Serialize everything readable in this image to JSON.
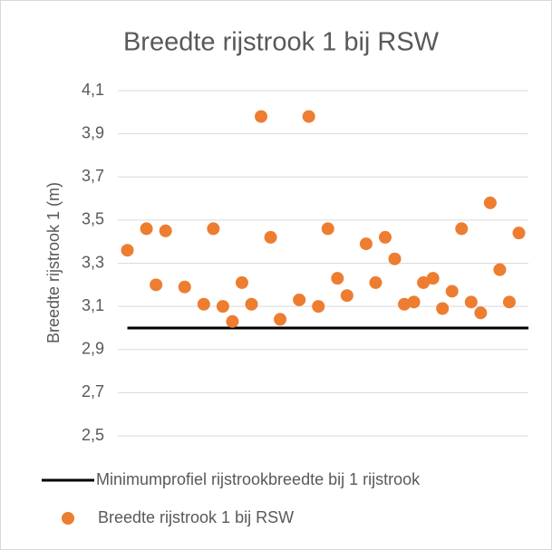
{
  "chart_data": {
    "type": "scatter",
    "title": "Breedte rijstrook 1 bij RSW",
    "ylabel": "Breedte rijstrook 1 (m)",
    "xlim": [
      0,
      43
    ],
    "ylim": [
      2.5,
      4.1
    ],
    "yticks": [
      {
        "value": 2.5,
        "label": "2,5"
      },
      {
        "value": 2.7,
        "label": "2,7"
      },
      {
        "value": 2.9,
        "label": "2,9"
      },
      {
        "value": 3.1,
        "label": "3,1"
      },
      {
        "value": 3.3,
        "label": "3,3"
      },
      {
        "value": 3.5,
        "label": "3,5"
      },
      {
        "value": 3.7,
        "label": "3,7"
      },
      {
        "value": 3.9,
        "label": "3,9"
      },
      {
        "value": 4.1,
        "label": "4,1"
      }
    ],
    "grid": true,
    "legend": "bottom",
    "series": [
      {
        "name": "Minimumprofiel rijstrookbreedte bij 1 rijstrook",
        "color": "#000000",
        "type": "line",
        "x": [
          1,
          43
        ],
        "values": [
          3,
          3
        ]
      },
      {
        "name": "Breedte rijstrook 1 bij RSW",
        "color": "#ed7d31",
        "type": "scatter",
        "x": [
          1,
          3,
          4,
          5,
          7,
          9,
          10,
          11,
          12,
          13,
          14,
          15,
          16,
          17,
          19,
          20,
          21,
          22,
          23,
          24,
          26,
          27,
          28,
          29,
          30,
          31,
          32,
          33,
          34,
          35,
          36,
          37,
          38,
          39,
          40,
          41,
          42
        ],
        "values": [
          3.36,
          3.46,
          3.2,
          3.45,
          3.19,
          3.11,
          3.46,
          3.1,
          3.03,
          3.21,
          3.11,
          3.98,
          3.42,
          3.04,
          3.13,
          3.98,
          3.1,
          3.46,
          3.23,
          3.15,
          3.39,
          3.21,
          3.42,
          3.32,
          3.11,
          3.12,
          3.21,
          3.23,
          3.09,
          3.17,
          3.46,
          3.12,
          3.07,
          3.58,
          3.27,
          3.12,
          3.44
        ]
      }
    ]
  }
}
